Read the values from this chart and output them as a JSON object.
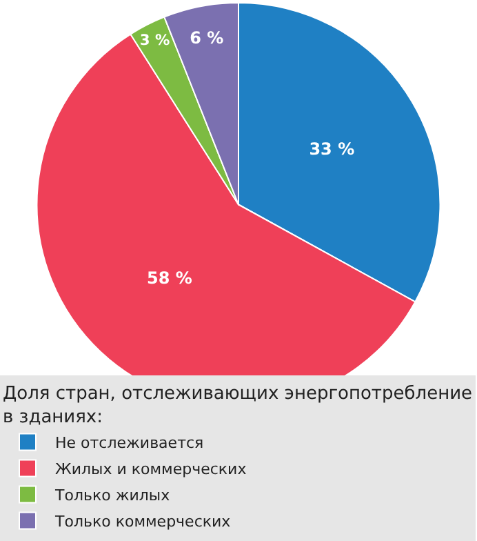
{
  "chart_data": {
    "type": "pie",
    "categories": [
      "Не отслеживается",
      "Жилых и коммерческих",
      "Только жилых",
      "Только коммерческих"
    ],
    "values": [
      33,
      58,
      3,
      6
    ],
    "colors": [
      "#1f80c4",
      "#ef4058",
      "#7dbb42",
      "#7b70b0"
    ],
    "value_labels": [
      "33 %",
      "58 %",
      "3 %",
      "6 %"
    ],
    "legend_title": "Доля стран, отслеживающих энергопотребление в зданиях:",
    "legend": "bottom"
  }
}
